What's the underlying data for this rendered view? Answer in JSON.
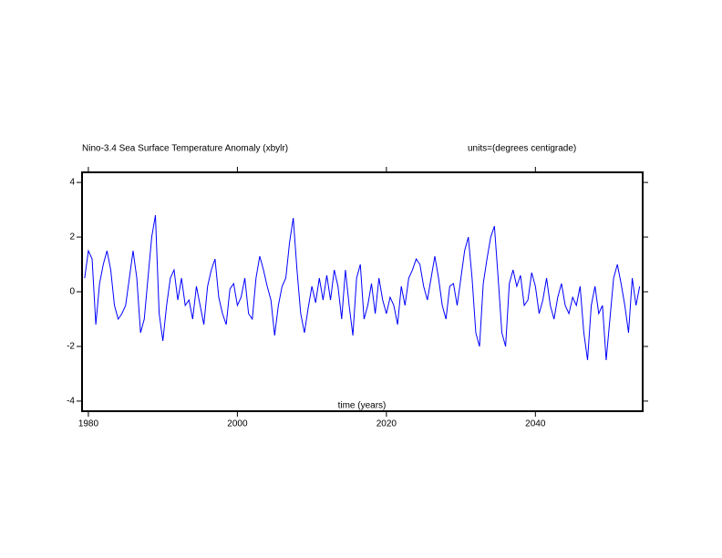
{
  "chart_data": {
    "type": "line",
    "title": "Nino-3.4 Sea Surface Temperature Anomaly (xbylr)",
    "subtitle": "units=(degrees centigrade)",
    "x_label": "time (years)",
    "color": "#0000ff",
    "xlim": [
      1979.15,
      2054.4
    ],
    "xticks": [
      1980,
      2000,
      2020,
      2040
    ],
    "ylim": [
      -4.37,
      4.37
    ],
    "yticks": [
      -4,
      -2,
      0,
      2,
      4
    ],
    "x": [
      1979.5,
      1980,
      1980.5,
      1981,
      1981.5,
      1982,
      1982.5,
      1983,
      1983.5,
      1984,
      1984.5,
      1985,
      1985.5,
      1986,
      1986.5,
      1987,
      1987.5,
      1988,
      1988.5,
      1989,
      1989.5,
      1990,
      1990.5,
      1991,
      1991.5,
      1992,
      1992.5,
      1993,
      1993.5,
      1994,
      1994.5,
      1995,
      1995.5,
      1996,
      1996.5,
      1997,
      1997.5,
      1998,
      1998.5,
      1999,
      1999.5,
      2000,
      2000.5,
      2001,
      2001.5,
      2002,
      2002.5,
      2003,
      2003.5,
      2004,
      2004.5,
      2005,
      2005.5,
      2006,
      2006.5,
      2007,
      2007.5,
      2008,
      2008.5,
      2009,
      2009.5,
      2010,
      2010.5,
      2011,
      2011.5,
      2012,
      2012.5,
      2013,
      2013.5,
      2014,
      2014.5,
      2015,
      2015.5,
      2016,
      2016.5,
      2017,
      2017.5,
      2018,
      2018.5,
      2019,
      2019.5,
      2020,
      2020.5,
      2021,
      2021.5,
      2022,
      2022.5,
      2023,
      2023.5,
      2024,
      2024.5,
      2025,
      2025.5,
      2026,
      2026.5,
      2027,
      2027.5,
      2028,
      2028.5,
      2029,
      2029.5,
      2030,
      2030.5,
      2031,
      2031.5,
      2032,
      2032.5,
      2033,
      2033.5,
      2034,
      2034.5,
      2035,
      2035.5,
      2036,
      2036.5,
      2037,
      2037.5,
      2038,
      2038.5,
      2039,
      2039.5,
      2040,
      2040.5,
      2041,
      2041.5,
      2042,
      2042.5,
      2043,
      2043.5,
      2044,
      2044.5,
      2045,
      2045.5,
      2046,
      2046.5,
      2047,
      2047.5,
      2048,
      2048.5,
      2049,
      2049.5,
      2050,
      2050.5,
      2051,
      2051.5,
      2052,
      2052.5,
      2053,
      2053.5,
      2054
    ],
    "values": [
      0.5,
      1.5,
      1.2,
      -1.2,
      0.3,
      1.0,
      1.5,
      0.8,
      -0.5,
      -1.0,
      -0.8,
      -0.5,
      0.5,
      1.5,
      0.5,
      -1.5,
      -1.0,
      0.5,
      2.0,
      2.8,
      -0.8,
      -1.8,
      -0.5,
      0.5,
      0.8,
      -0.3,
      0.5,
      -0.5,
      -0.3,
      -1.0,
      0.2,
      -0.5,
      -1.2,
      0.2,
      0.8,
      1.2,
      -0.2,
      -0.8,
      -1.2,
      0.1,
      0.3,
      -0.5,
      -0.2,
      0.5,
      -0.8,
      -1.0,
      0.5,
      1.3,
      0.8,
      0.2,
      -0.3,
      -1.6,
      -0.5,
      0.2,
      0.5,
      1.8,
      2.7,
      0.8,
      -0.8,
      -1.5,
      -0.6,
      0.2,
      -0.4,
      0.5,
      -0.3,
      0.6,
      -0.3,
      0.8,
      0.2,
      -1.0,
      0.8,
      -0.5,
      -1.6,
      0.5,
      1.0,
      -1.0,
      -0.5,
      0.3,
      -0.8,
      0.5,
      -0.3,
      -0.8,
      -0.2,
      -0.5,
      -1.2,
      0.2,
      -0.5,
      0.5,
      0.8,
      1.2,
      1.0,
      0.2,
      -0.3,
      0.5,
      1.3,
      0.5,
      -0.5,
      -1.0,
      0.2,
      0.3,
      -0.5,
      0.5,
      1.5,
      2.0,
      0.5,
      -1.5,
      -2.0,
      0.3,
      1.2,
      2.0,
      2.4,
      0.5,
      -1.5,
      -2.0,
      0.3,
      0.8,
      0.2,
      0.6,
      -0.5,
      -0.3,
      0.7,
      0.2,
      -0.8,
      -0.3,
      0.5,
      -0.5,
      -1.0,
      -0.2,
      0.3,
      -0.5,
      -0.8,
      -0.2,
      -0.5,
      0.2,
      -1.5,
      -2.5,
      -0.5,
      0.2,
      -0.8,
      -0.5,
      -2.5,
      -1.0,
      0.5,
      1.0,
      0.3,
      -0.5,
      -1.5,
      0.5,
      -0.5,
      0.2
    ]
  }
}
